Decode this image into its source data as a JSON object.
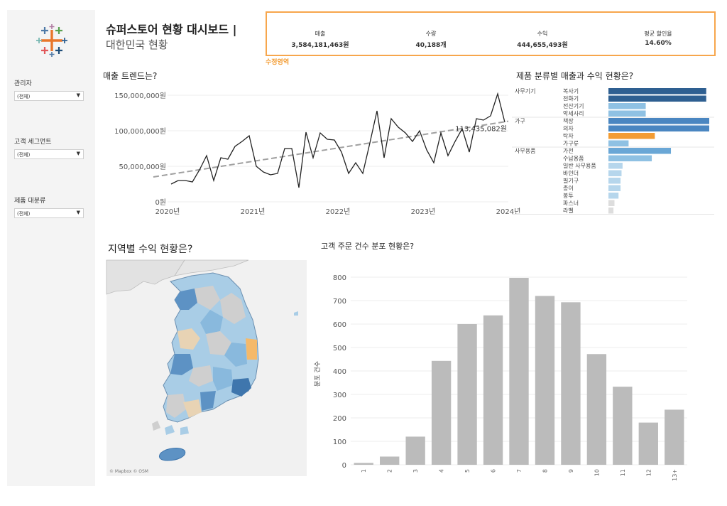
{
  "colors": {
    "accent": "#f7a64c",
    "dark_blue": "#2e5f91",
    "mid_blue": "#4a86c1",
    "light_blue": "#8fc1e3",
    "pale_blue": "#b6d6ec",
    "orange": "#f39c33",
    "grey_bar": "#bbbbbb"
  },
  "icons": {
    "logo": "tableau-logo-icon",
    "dropdown": "chevron-down-icon"
  },
  "sidebar": {
    "filters": [
      {
        "label": "관리자",
        "value": "(전체)"
      },
      {
        "label": "고객 세그먼트",
        "value": "(전체)"
      },
      {
        "label": "제품 대분류",
        "value": "(전체)"
      }
    ]
  },
  "header": {
    "title_line1": "슈퍼스토어 현황 대시보드 |",
    "title_line2": "대한민국 현황"
  },
  "kpis": [
    {
      "label": "매출",
      "value": "3,584,181,463원"
    },
    {
      "label": "수량",
      "value": "40,188개"
    },
    {
      "label": "수익",
      "value": "444,655,493원"
    },
    {
      "label": "평균 할인율",
      "value": "14.60%"
    }
  ],
  "kpi_note": "수정영역",
  "sections": {
    "trend_title": "매출 트렌드는?",
    "category_title": "제품 분류별 매출과 수익 현황은?",
    "map_title": "지역별 수익 현황은?",
    "dist_title": "고객 주문 건수 분포 현황은?",
    "map_attribution": "© Mapbox © OSM"
  },
  "chart_data": [
    {
      "type": "line",
      "title": "매출 트렌드는?",
      "y_tick_labels": [
        "0원",
        "50,000,000원",
        "100,000,000원",
        "150,000,000원"
      ],
      "y_ticks": [
        0,
        50000000,
        100000000,
        150000000
      ],
      "x_tick_labels": [
        "2020년",
        "2021년",
        "2022년",
        "2023년",
        "2024년"
      ],
      "x_ticks": [
        "2020-01",
        "2021-01",
        "2022-01",
        "2023-01",
        "2024-01"
      ],
      "ylim": [
        0,
        160000000
      ],
      "x_months": [
        "2020-01",
        "2020-02",
        "2020-03",
        "2020-04",
        "2020-05",
        "2020-06",
        "2020-07",
        "2020-08",
        "2020-09",
        "2020-10",
        "2020-11",
        "2020-12",
        "2021-01",
        "2021-02",
        "2021-03",
        "2021-04",
        "2021-05",
        "2021-06",
        "2021-07",
        "2021-08",
        "2021-09",
        "2021-10",
        "2021-11",
        "2021-12",
        "2022-01",
        "2022-02",
        "2022-03",
        "2022-04",
        "2022-05",
        "2022-06",
        "2022-07",
        "2022-08",
        "2022-09",
        "2022-10",
        "2022-11",
        "2022-12",
        "2023-01",
        "2023-02",
        "2023-03",
        "2023-04",
        "2023-05",
        "2023-06",
        "2023-07",
        "2023-08",
        "2023-09",
        "2023-10",
        "2023-11",
        "2023-12"
      ],
      "values": [
        25000000,
        30000000,
        30000000,
        28000000,
        45000000,
        65000000,
        30000000,
        62000000,
        60000000,
        78000000,
        85000000,
        93000000,
        50000000,
        42000000,
        38000000,
        40000000,
        75000000,
        75000000,
        20000000,
        98000000,
        62000000,
        97000000,
        88000000,
        87000000,
        70000000,
        40000000,
        55000000,
        40000000,
        83000000,
        128000000,
        62000000,
        117000000,
        105000000,
        97000000,
        85000000,
        100000000,
        73000000,
        55000000,
        97000000,
        65000000,
        85000000,
        103000000,
        70000000,
        117000000,
        115000000,
        121000000,
        152000000,
        112000000
      ],
      "trend_start": 35000000,
      "trend_end": 113435082,
      "end_label": "113,435,082원",
      "grid": true
    },
    {
      "type": "bar",
      "title": "제품 분류별 매출과 수익 현황은?",
      "groups": [
        {
          "name": "사무기기",
          "items": [
            {
              "name": "복사기",
              "value": 97,
              "color": "#2e5f91"
            },
            {
              "name": "전화기",
              "value": 97,
              "color": "#2e5f91"
            },
            {
              "name": "전산기기",
              "value": 37,
              "color": "#8fc1e3"
            },
            {
              "name": "악세사리",
              "value": 37,
              "color": "#8fc1e3"
            }
          ]
        },
        {
          "name": "가구",
          "items": [
            {
              "name": "책장",
              "value": 100,
              "color": "#4a86c1"
            },
            {
              "name": "의자",
              "value": 100,
              "color": "#4a86c1"
            },
            {
              "name": "탁자",
              "value": 46,
              "color": "#f39c33"
            },
            {
              "name": "가구류",
              "value": 20,
              "color": "#8fc1e3"
            }
          ]
        },
        {
          "name": "사무용품",
          "items": [
            {
              "name": "가전",
              "value": 62,
              "color": "#6aa7d6"
            },
            {
              "name": "수납용품",
              "value": 43,
              "color": "#8fc1e3"
            },
            {
              "name": "일반 사무용품",
              "value": 14,
              "color": "#b6d6ec"
            },
            {
              "name": "바인더",
              "value": 13,
              "color": "#b6d6ec"
            },
            {
              "name": "필기구",
              "value": 12,
              "color": "#b6d6ec"
            },
            {
              "name": "종이",
              "value": 12,
              "color": "#b6d6ec"
            },
            {
              "name": "봉투",
              "value": 10,
              "color": "#b6d6ec"
            },
            {
              "name": "파스너",
              "value": 6,
              "color": "#dddddd"
            },
            {
              "name": "라벨",
              "value": 5,
              "color": "#dddddd"
            }
          ]
        }
      ]
    },
    {
      "type": "bar",
      "title": "고객 주문 건수 분포 현황은?",
      "ylabel": "분포 건수",
      "categories": [
        "1",
        "2",
        "3",
        "4",
        "5",
        "6",
        "7",
        "8",
        "9",
        "10",
        "11",
        "12",
        "13+"
      ],
      "values": [
        8,
        35,
        120,
        443,
        600,
        637,
        797,
        720,
        693,
        472,
        333,
        180,
        235
      ],
      "y_ticks": [
        0,
        100,
        200,
        300,
        400,
        500,
        600,
        700,
        800
      ],
      "ylim": [
        0,
        800
      ],
      "grid": true
    }
  ]
}
